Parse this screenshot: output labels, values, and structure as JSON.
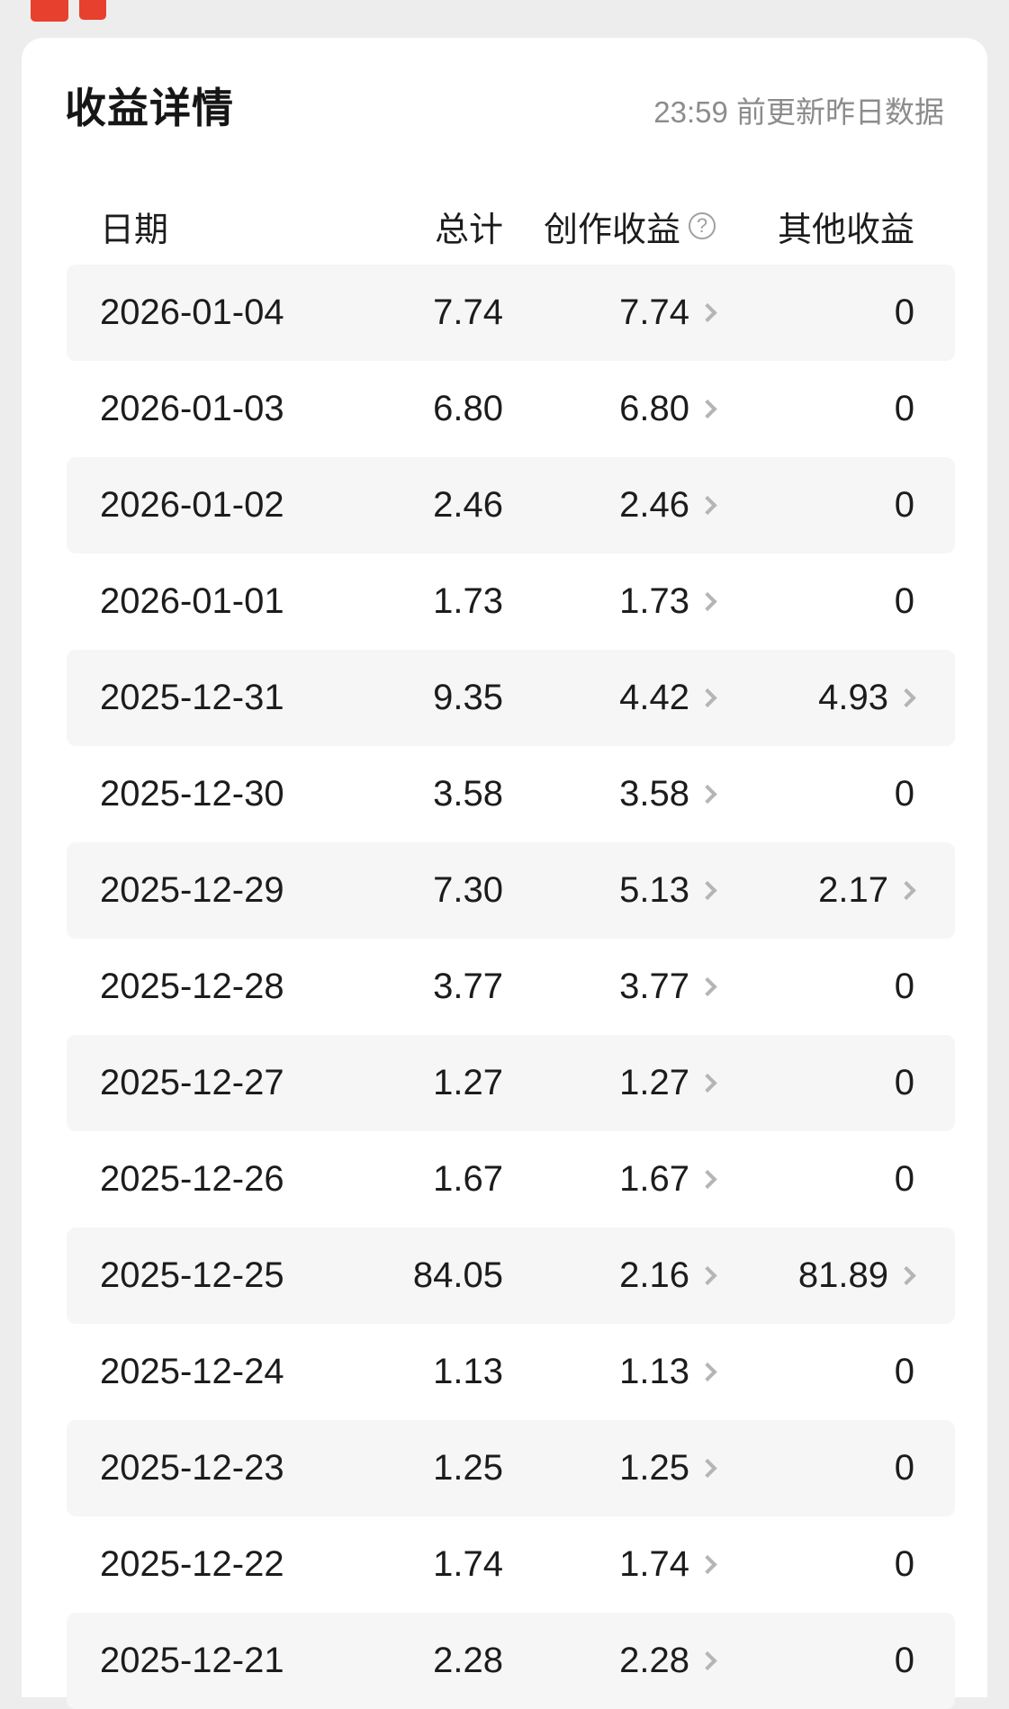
{
  "header": {
    "title": "收益详情",
    "update_note": "23:59 前更新昨日数据"
  },
  "table": {
    "columns": {
      "date": "日期",
      "total": "总计",
      "creation": "创作收益",
      "other": "其他收益"
    },
    "help_icon": "?",
    "rows": [
      {
        "date": "2026-01-04",
        "total": "7.74",
        "creation": "7.74",
        "other": "0",
        "other_link": false
      },
      {
        "date": "2026-01-03",
        "total": "6.80",
        "creation": "6.80",
        "other": "0",
        "other_link": false
      },
      {
        "date": "2026-01-02",
        "total": "2.46",
        "creation": "2.46",
        "other": "0",
        "other_link": false
      },
      {
        "date": "2026-01-01",
        "total": "1.73",
        "creation": "1.73",
        "other": "0",
        "other_link": false
      },
      {
        "date": "2025-12-31",
        "total": "9.35",
        "creation": "4.42",
        "other": "4.93",
        "other_link": true
      },
      {
        "date": "2025-12-30",
        "total": "3.58",
        "creation": "3.58",
        "other": "0",
        "other_link": false
      },
      {
        "date": "2025-12-29",
        "total": "7.30",
        "creation": "5.13",
        "other": "2.17",
        "other_link": true
      },
      {
        "date": "2025-12-28",
        "total": "3.77",
        "creation": "3.77",
        "other": "0",
        "other_link": false
      },
      {
        "date": "2025-12-27",
        "total": "1.27",
        "creation": "1.27",
        "other": "0",
        "other_link": false
      },
      {
        "date": "2025-12-26",
        "total": "1.67",
        "creation": "1.67",
        "other": "0",
        "other_link": false
      },
      {
        "date": "2025-12-25",
        "total": "84.05",
        "creation": "2.16",
        "other": "81.89",
        "other_link": true
      },
      {
        "date": "2025-12-24",
        "total": "1.13",
        "creation": "1.13",
        "other": "0",
        "other_link": false
      },
      {
        "date": "2025-12-23",
        "total": "1.25",
        "creation": "1.25",
        "other": "0",
        "other_link": false
      },
      {
        "date": "2025-12-22",
        "total": "1.74",
        "creation": "1.74",
        "other": "0",
        "other_link": false
      },
      {
        "date": "2025-12-21",
        "total": "2.28",
        "creation": "2.28",
        "other": "0",
        "other_link": false
      }
    ]
  },
  "colors": {
    "accent_red": "#e8402f",
    "page_bg": "#ededed",
    "card_bg": "#ffffff",
    "row_stripe": "#f6f6f7",
    "text_primary": "#1c1c1c",
    "text_secondary": "#8c8c8c",
    "chevron": "#b5b5b5"
  }
}
